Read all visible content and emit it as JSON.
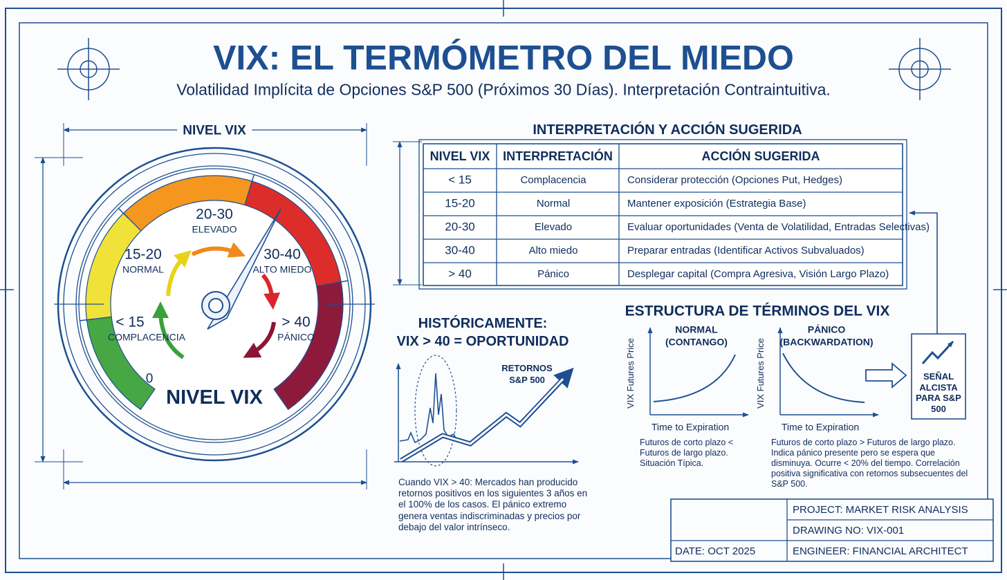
{
  "header": {
    "title": "VIX: EL TERMÓMETRO DEL MIEDO",
    "subtitle": "Volatilidad Implícita de Opciones S&P 500 (Próximos 30 Días). Interpretación Contraintuitiva."
  },
  "gauge": {
    "top_label": "NIVEL VIX",
    "bottom_label": "NIVEL VIX",
    "zero": "0",
    "zones": [
      {
        "range": "< 15",
        "label": "COMPLACENCIA"
      },
      {
        "range": "15-20",
        "label": "NORMAL"
      },
      {
        "range": "20-30",
        "label": "ELEVADO"
      },
      {
        "range": "30-40",
        "label": "ALTO MIEDO"
      },
      {
        "range": "> 40",
        "label": "PÁNICO"
      }
    ]
  },
  "table": {
    "title": "INTERPRETACIÓN Y ACCIÓN SUGERIDA",
    "columns": [
      "NIVEL VIX",
      "INTERPRETACIÓN",
      "ACCIÓN SUGERIDA"
    ],
    "rows": [
      [
        "< 15",
        "Complacencia",
        "Considerar protección (Opciones Put, Hedges)"
      ],
      [
        "15-20",
        "Normal",
        "Mantener exposición (Estrategia Base)"
      ],
      [
        "20-30",
        "Elevado",
        "Evaluar oportunidades (Venta de Volatilidad, Entradas Selectivas)"
      ],
      [
        "30-40",
        "Alto miedo",
        "Preparar entradas (Identificar Activos Subvaluados)"
      ],
      [
        "> 40",
        "Pánico",
        "Desplegar capital (Compra Agresiva, Visión Largo Plazo)"
      ]
    ]
  },
  "historical": {
    "title": "HISTÓRICAMENTE:",
    "subtitle": "VIX > 40 = OPORTUNIDAD",
    "chart_label": [
      "RETORNOS",
      "S&P 500"
    ],
    "note": "Cuando VIX > 40: Mercados han producido retornos positivos en los siguientes 3 años en el 100% de los casos. El pánico extremo genera ventas indiscriminadas y precios por debajo del valor intrínseco."
  },
  "term_structure": {
    "title": "ESTRUCTURA DE TÉRMINOS DEL VIX",
    "panels": [
      {
        "title": "NORMAL",
        "subtitle": "(CONTANGO)",
        "y_label": "VIX Futures Price",
        "x_label": "Time to Expiration",
        "note": "Futuros de corto plazo < Futuros de largo plazo. Situación Típica."
      },
      {
        "title": "PÁNICO",
        "subtitle": "(BACKWARDATION)",
        "y_label": "VIX Futures Price",
        "x_label": "Time to Expiration",
        "note": "Futuros de corto plazo > Futuros de largo plazo. Indica pánico presente pero se espera que disminuya. Ocurre < 20% del tiempo. Correlación positiva significativa con retornos subsecuentes del S&P 500."
      }
    ],
    "signal": "SEÑAL ALCISTA PARA S&P 500"
  },
  "title_block": {
    "project": "PROJECT: MARKET RISK ANALYSIS",
    "drawing": "DRAWING NO: VIX-001",
    "date": "DATE: OCT 2025",
    "engineer": "ENGINEER: FINANCIAL ARCHITECT"
  }
}
